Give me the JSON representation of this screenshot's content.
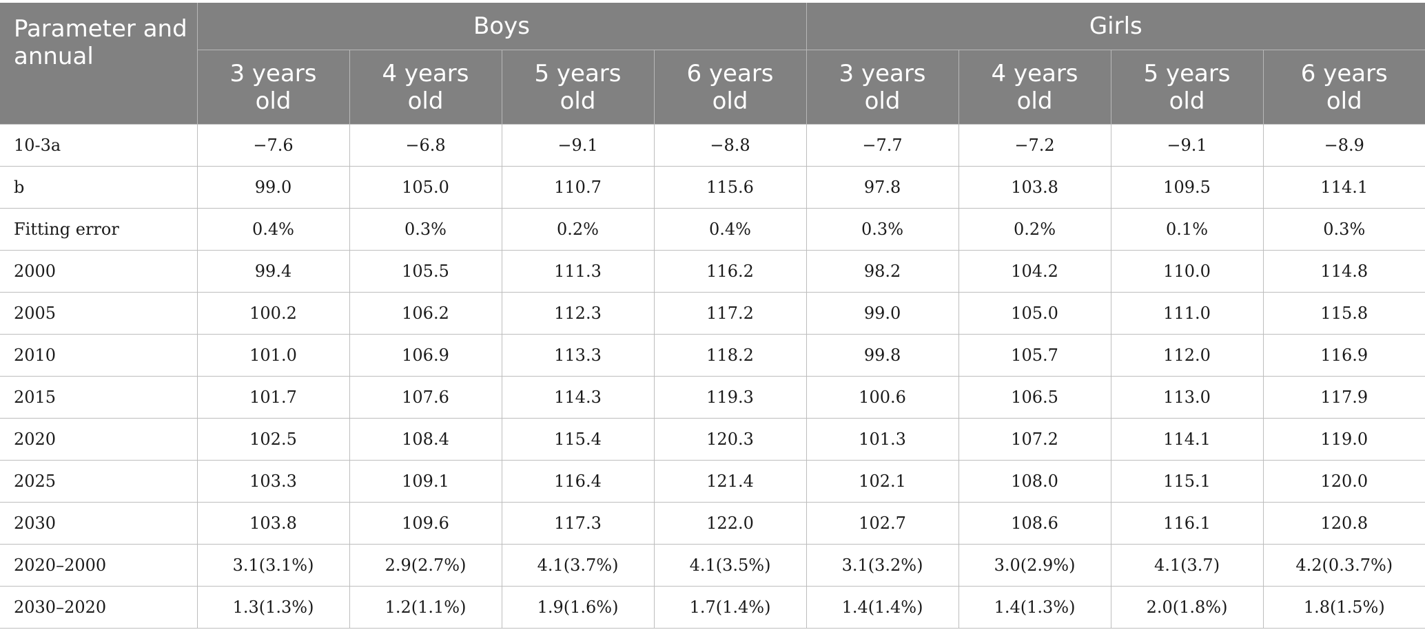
{
  "header": {
    "corner_label": "Parameter and annual",
    "groups": [
      "Boys",
      "Girls"
    ],
    "ages": [
      [
        "3 years",
        "old"
      ],
      [
        "4 years",
        "old"
      ],
      [
        "5 years",
        "old"
      ],
      [
        "6 years",
        "old"
      ],
      [
        "3 years",
        "old"
      ],
      [
        "4 years",
        "old"
      ],
      [
        "5 years",
        "old"
      ],
      [
        "6 years",
        "old"
      ]
    ]
  },
  "rows": [
    {
      "label": "10-3a",
      "values": [
        "−7.6",
        "−6.8",
        "−9.1",
        "−8.8",
        "−7.7",
        "−7.2",
        "−9.1",
        "−8.9"
      ]
    },
    {
      "label": "b",
      "values": [
        "99.0",
        "105.0",
        "110.7",
        "115.6",
        "97.8",
        "103.8",
        "109.5",
        "114.1"
      ]
    },
    {
      "label": "Fitting error",
      "values": [
        "0.4%",
        "0.3%",
        "0.2%",
        "0.4%",
        "0.3%",
        "0.2%",
        "0.1%",
        "0.3%"
      ]
    },
    {
      "label": "2000",
      "values": [
        "99.4",
        "105.5",
        "111.3",
        "116.2",
        "98.2",
        "104.2",
        "110.0",
        "114.8"
      ]
    },
    {
      "label": "2005",
      "values": [
        "100.2",
        "106.2",
        "112.3",
        "117.2",
        "99.0",
        "105.0",
        "111.0",
        "115.8"
      ]
    },
    {
      "label": "2010",
      "values": [
        "101.0",
        "106.9",
        "113.3",
        "118.2",
        "99.8",
        "105.7",
        "112.0",
        "116.9"
      ]
    },
    {
      "label": "2015",
      "values": [
        "101.7",
        "107.6",
        "114.3",
        "119.3",
        "100.6",
        "106.5",
        "113.0",
        "117.9"
      ]
    },
    {
      "label": "2020",
      "values": [
        "102.5",
        "108.4",
        "115.4",
        "120.3",
        "101.3",
        "107.2",
        "114.1",
        "119.0"
      ]
    },
    {
      "label": "2025",
      "values": [
        "103.3",
        "109.1",
        "116.4",
        "121.4",
        "102.1",
        "108.0",
        "115.1",
        "120.0"
      ]
    },
    {
      "label": "2030",
      "values": [
        "103.8",
        "109.6",
        "117.3",
        "122.0",
        "102.7",
        "108.6",
        "116.1",
        "120.8"
      ]
    },
    {
      "label": "2020–2000",
      "values": [
        "3.1(3.1%)",
        "2.9(2.7%)",
        "4.1(3.7%)",
        "4.1(3.5%)",
        "3.1(3.2%)",
        "3.0(2.9%)",
        "4.1(3.7)",
        "4.2(0.3.7%)"
      ]
    },
    {
      "label": "2030–2020",
      "values": [
        "1.3(1.3%)",
        "1.2(1.1%)",
        "1.9(1.6%)",
        "1.7(1.4%)",
        "1.4(1.4%)",
        "1.4(1.3%)",
        "2.0(1.8%)",
        "1.8(1.5%)"
      ]
    }
  ],
  "colors": {
    "header_bg": "#818181",
    "header_text": "#ffffff",
    "grid": "#bdbdbd"
  }
}
